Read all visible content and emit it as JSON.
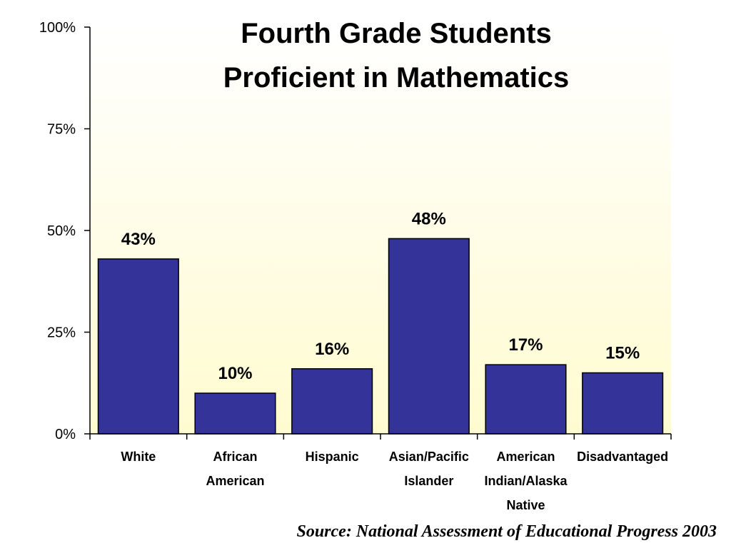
{
  "chart_data": {
    "type": "bar",
    "title_lines": [
      "Fourth Grade Students",
      "Proficient in Mathematics"
    ],
    "categories": [
      [
        "White"
      ],
      [
        "African",
        "American"
      ],
      [
        "Hispanic"
      ],
      [
        "Asian/Pacific",
        "Islander"
      ],
      [
        "American",
        "Indian/Alaska",
        "Native"
      ],
      [
        "Disadvantaged"
      ]
    ],
    "values": [
      43,
      10,
      16,
      48,
      17,
      15
    ],
    "data_labels": [
      "43%",
      "10%",
      "16%",
      "48%",
      "17%",
      "15%"
    ],
    "y_ticks": [
      0,
      25,
      50,
      75,
      100
    ],
    "y_tick_labels": [
      "0%",
      "25%",
      "50%",
      "75%",
      "100%"
    ],
    "ylim": [
      0,
      100
    ],
    "bar_color": "#333399",
    "plot_gradient": [
      "#ffffff",
      "#fffbd0"
    ],
    "grid": false,
    "legend": "none"
  },
  "footer": {
    "source": "Source: National Assessment of Educational Progress 2003"
  }
}
